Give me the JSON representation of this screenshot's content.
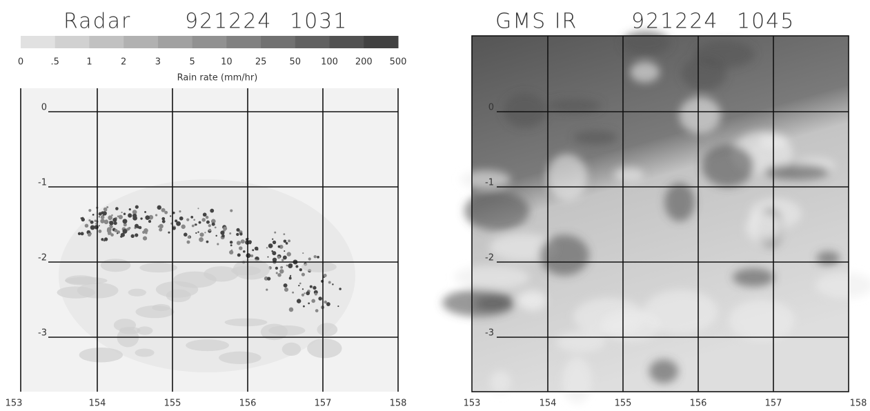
{
  "left_panel": {
    "title": "Radar",
    "date": "921224",
    "time": "1031",
    "colorbar_labels": [
      "0",
      ".5",
      "1",
      "2",
      "3",
      "5",
      "10",
      "25",
      "50",
      "100",
      "200",
      "500"
    ],
    "colorbar_caption": "Rain rate (mm/hr)",
    "x_tick_labels": [
      "153",
      "154",
      "155",
      "156",
      "157",
      "158"
    ],
    "y_tick_labels": [
      "0",
      "-1",
      "-2",
      "-3"
    ]
  },
  "right_panel": {
    "title": "GMS IR",
    "date": "921224",
    "time": "1045",
    "x_tick_labels": [
      "153",
      "154",
      "155",
      "156",
      "157",
      "158"
    ],
    "y_tick_labels": [
      "0",
      "-1",
      "-2",
      "-3"
    ]
  }
}
